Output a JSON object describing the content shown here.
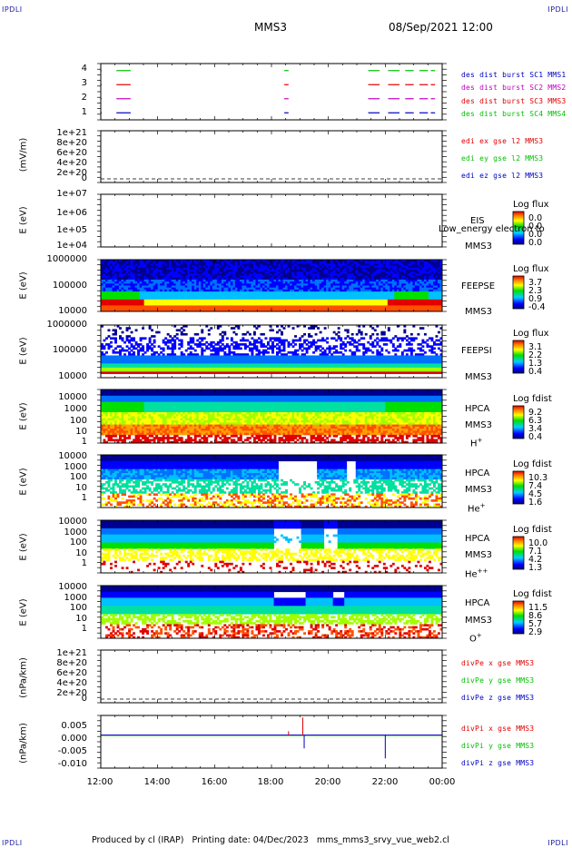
{
  "corners": {
    "tl": "IPDLI",
    "tr": "IPDLI",
    "bl": "IPDLI",
    "br": "IPDLI"
  },
  "header": {
    "mission": "MMS3",
    "datetime": "08/Sep/2021 12:00"
  },
  "footer": {
    "text": "Produced by cl (IRAP)   Printing date: 04/Dec/2023   mms_mms3_srvy_vue_web2.cl"
  },
  "x_ticks": [
    "12:00",
    "14:00",
    "16:00",
    "18:00",
    "20:00",
    "22:00",
    "00:00"
  ],
  "colors": {
    "red": "#e00000",
    "green": "#00c000",
    "blue": "#0000c0",
    "magenta": "#c000c0"
  },
  "chart_data": [
    {
      "type": "line",
      "panel": "burst",
      "yticks": [
        "4",
        "3",
        "2",
        "1"
      ],
      "ylim": [
        0.5,
        4.5
      ],
      "legend": [
        "des dist burst SC1 MMS1",
        "des dist burst SC2 MMS2",
        "des dist burst SC3 MMS3",
        "des dist burst SC4 MMS4"
      ],
      "series": [
        {
          "name": "des dist burst SC4 MMS4",
          "level": 4,
          "intervals": [
            [
              12.0,
              12.03
            ],
            [
              12.55,
              13.05
            ],
            [
              18.45,
              18.6
            ],
            [
              21.4,
              21.8
            ],
            [
              22.1,
              22.5
            ],
            [
              22.7,
              23.0
            ],
            [
              23.2,
              23.5
            ],
            [
              23.6,
              23.75
            ]
          ]
        },
        {
          "name": "des dist burst SC3 MMS3",
          "level": 3,
          "intervals": [
            [
              12.0,
              12.03
            ],
            [
              12.55,
              13.05
            ],
            [
              18.45,
              18.6
            ],
            [
              21.4,
              21.8
            ],
            [
              22.1,
              22.5
            ],
            [
              22.7,
              23.0
            ],
            [
              23.2,
              23.5
            ],
            [
              23.6,
              23.75
            ]
          ]
        },
        {
          "name": "des dist burst SC2 MMS2",
          "level": 2,
          "intervals": [
            [
              12.0,
              12.03
            ],
            [
              12.55,
              13.05
            ],
            [
              18.45,
              18.6
            ],
            [
              21.4,
              21.8
            ],
            [
              22.1,
              22.5
            ],
            [
              22.7,
              23.0
            ],
            [
              23.2,
              23.5
            ],
            [
              23.6,
              23.75
            ]
          ]
        },
        {
          "name": "des dist burst SC1 MMS1",
          "level": 1,
          "intervals": [
            [
              12.0,
              12.03
            ],
            [
              12.55,
              13.05
            ],
            [
              18.45,
              18.6
            ],
            [
              21.4,
              21.8
            ],
            [
              22.1,
              22.5
            ],
            [
              22.7,
              23.0
            ],
            [
              23.2,
              23.5
            ],
            [
              23.6,
              23.75
            ]
          ]
        }
      ]
    },
    {
      "type": "line",
      "panel": "edi",
      "ylabel": "(mV/m)",
      "yticks": [
        "1e+21",
        "8e+20",
        "6e+20",
        "4e+20",
        "2e+20",
        "0"
      ],
      "ylim": [
        0,
        1e+21
      ],
      "legend": [
        "edi ex gse l2 MMS3",
        "edi ey gse l2 MMS3",
        "edi ez gse l2 MMS3"
      ]
    },
    {
      "type": "heatmap",
      "panel": "eis",
      "ylabel": "E (eV)",
      "yticks": [
        "1e+07",
        "1e+06",
        "1e+05",
        "1e+04"
      ],
      "labels": [
        "EIS",
        "MMS3"
      ],
      "overlay": "Low_energy electron to",
      "cbar_title": "Log flux",
      "cbar_values": [
        "0.0",
        "0.0",
        "0.0",
        "0.0"
      ]
    },
    {
      "type": "heatmap",
      "panel": "feepse",
      "ylabel": "E (eV)",
      "yticks": [
        "1000000",
        "100000",
        "10000"
      ],
      "labels": [
        "FEEPSE",
        "MMS3"
      ],
      "cbar_title": "Log flux",
      "cbar_values": [
        "3.7",
        "2.3",
        "0.9",
        "-0.4"
      ]
    },
    {
      "type": "heatmap",
      "panel": "feepsi",
      "ylabel": "E (eV)",
      "yticks": [
        "1000000",
        "100000",
        "10000"
      ],
      "labels": [
        "FEEPSI",
        "MMS3"
      ],
      "cbar_title": "Log flux",
      "cbar_values": [
        "3.1",
        "2.2",
        "1.3",
        "0.4"
      ]
    },
    {
      "type": "heatmap",
      "panel": "hpca_h",
      "ylabel": "E (eV)",
      "yticks": [
        "10000",
        "1000",
        "100",
        "10",
        "1"
      ],
      "labels": [
        "HPCA",
        "MMS3",
        "H",
        "+"
      ],
      "cbar_title": "Log fdist",
      "cbar_values": [
        "9.2",
        "6.3",
        "3.4",
        "0.4"
      ]
    },
    {
      "type": "heatmap",
      "panel": "hpca_he",
      "ylabel": "E (eV)",
      "yticks": [
        "10000",
        "1000",
        "100",
        "10",
        "1"
      ],
      "labels": [
        "HPCA",
        "MMS3",
        "He",
        "+"
      ],
      "cbar_title": "Log fdist",
      "cbar_values": [
        "10.3",
        "7.4",
        "4.5",
        "1.6"
      ]
    },
    {
      "type": "heatmap",
      "panel": "hpca_hepp",
      "ylabel": "E (eV)",
      "yticks": [
        "10000",
        "1000",
        "100",
        "10",
        "1"
      ],
      "labels": [
        "HPCA",
        "MMS3",
        "He",
        "++"
      ],
      "cbar_title": "Log fdist",
      "cbar_values": [
        "10.0",
        "7.1",
        "4.2",
        "1.3"
      ]
    },
    {
      "type": "heatmap",
      "panel": "hpca_o",
      "ylabel": "E (eV)",
      "yticks": [
        "10000",
        "1000",
        "100",
        "10",
        "1"
      ],
      "labels": [
        "HPCA",
        "MMS3",
        "O",
        "+"
      ],
      "cbar_title": "Log fdist",
      "cbar_values": [
        "11.5",
        "8.6",
        "5.7",
        "2.9"
      ]
    },
    {
      "type": "line",
      "panel": "divpe",
      "ylabel": "(nPa/km)",
      "yticks": [
        "1e+21",
        "8e+20",
        "6e+20",
        "4e+20",
        "2e+20",
        "0"
      ],
      "ylim": [
        0,
        1e+21
      ],
      "legend": [
        "divPe x gse MMS3",
        "divPe y gse MMS3",
        "divPe z gse MMS3"
      ]
    },
    {
      "type": "line",
      "panel": "divpi",
      "ylabel": "(nPa/km)",
      "yticks": [
        "0.005",
        "0.000",
        "-0.005",
        "-0.010"
      ],
      "ylim": [
        -0.0125,
        0.0075
      ],
      "legend": [
        "divPi x gse MMS3",
        "divPi y gse MMS3",
        "divPi z gse MMS3"
      ],
      "spikes": [
        {
          "series": "divPi x gse MMS3",
          "time": 19.1,
          "value": 0.0067
        },
        {
          "series": "divPi x gse MMS3",
          "time": 18.6,
          "value": 0.0015
        },
        {
          "series": "divPi z gse MMS3",
          "time": 19.15,
          "value": -0.005
        },
        {
          "series": "divPi z gse MMS3",
          "time": 22.0,
          "value": -0.0088
        }
      ]
    }
  ]
}
